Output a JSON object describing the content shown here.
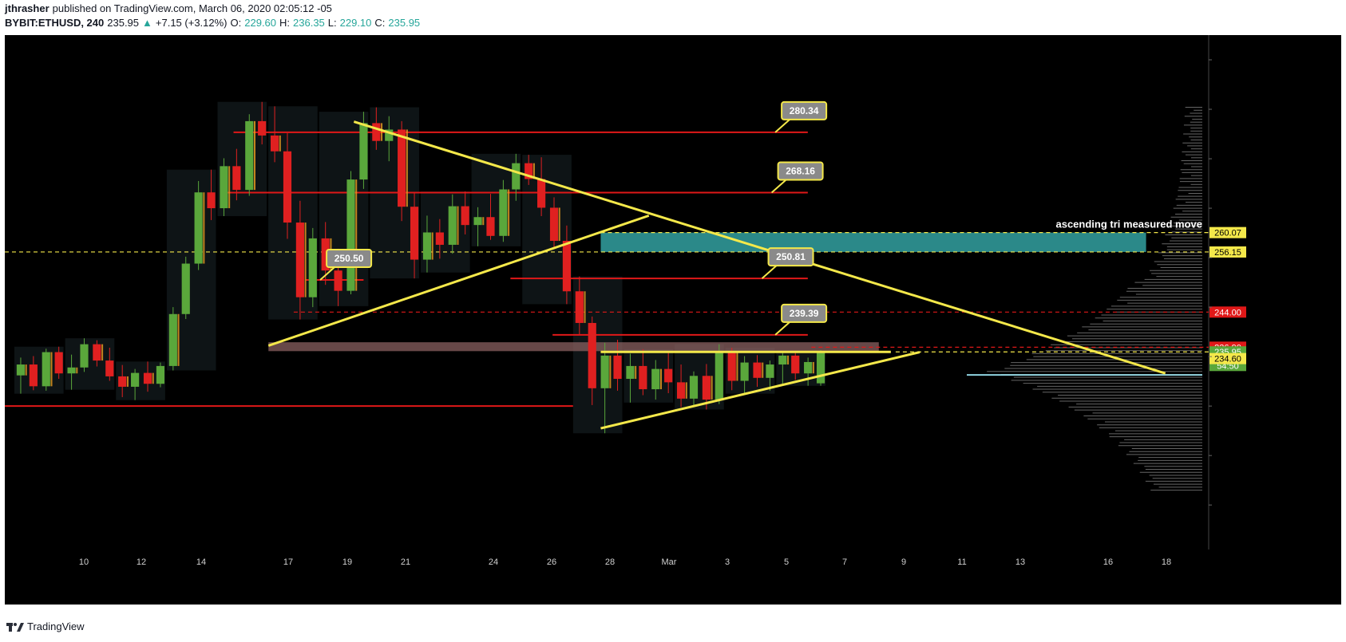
{
  "header": {
    "author": "jthrasher",
    "published": "published on TradingView.com, March 06, 2020 02:05:12 -05",
    "symbol": "BYBIT:ETHUSD, 240",
    "last": "235.95",
    "change": "+7.15 (+3.12%)",
    "o_label": "O:",
    "o": "229.60",
    "h_label": "H:",
    "h": "236.35",
    "l_label": "L:",
    "l": "229.10",
    "c_label": "C:",
    "c": "235.95"
  },
  "footer": {
    "brand": "TradingView"
  },
  "colors": {
    "background": "#000000",
    "up": "#5aa73b",
    "down": "#e02020",
    "trendline": "#f4e84a",
    "level_line": "#e01818",
    "measured_zone": "#3ab7b7",
    "supply_zone": "#8a6060",
    "profile": "#b9b9b9"
  },
  "chart_data": {
    "type": "candlestick",
    "symbol": "BYBIT:ETHUSD",
    "interval": "240",
    "x_ticks": [
      "10",
      "12",
      "14",
      "17",
      "19",
      "21",
      "24",
      "26",
      "28",
      "Mar",
      "3",
      "5",
      "7",
      "9",
      "11",
      "13",
      "16",
      "18"
    ],
    "axis_badges": [
      {
        "value": 260.07,
        "label": "260.07",
        "style": "yellow"
      },
      {
        "value": 256.15,
        "label": "256.15",
        "style": "yellow"
      },
      {
        "value": 244.0,
        "label": "244.00",
        "style": "red"
      },
      {
        "value": 236.9,
        "label": "236.90",
        "style": "red"
      },
      {
        "value": 235.95,
        "label": "235.95",
        "style": "green"
      },
      {
        "value": 233.2,
        "label": "54:50",
        "style": "green"
      },
      {
        "value": 234.6,
        "label": "234.60",
        "style": "yellow"
      }
    ],
    "callouts": [
      {
        "label": "280.34",
        "value": 280.34
      },
      {
        "label": "268.16",
        "value": 268.16
      },
      {
        "label": "250.50",
        "value": 250.5
      },
      {
        "label": "250.81",
        "value": 250.81
      },
      {
        "label": "239.39",
        "value": 239.39
      }
    ],
    "annotation_text": "ascending tri measured move",
    "candles": [
      [
        231.2,
        234.8,
        227.5,
        233.4
      ],
      [
        233.4,
        235.1,
        228.2,
        229.0
      ],
      [
        229.0,
        236.6,
        228.1,
        235.9
      ],
      [
        235.9,
        237.0,
        230.5,
        231.6
      ],
      [
        231.6,
        235.4,
        228.3,
        232.8
      ],
      [
        232.8,
        238.7,
        231.9,
        237.5
      ],
      [
        237.5,
        238.3,
        233.0,
        234.2
      ],
      [
        234.2,
        236.8,
        230.1,
        231.0
      ],
      [
        231.0,
        233.3,
        226.8,
        228.9
      ],
      [
        228.9,
        232.5,
        226.2,
        231.7
      ],
      [
        231.7,
        234.0,
        227.9,
        229.5
      ],
      [
        229.5,
        233.8,
        228.8,
        233.1
      ],
      [
        233.1,
        245.0,
        232.2,
        243.6
      ],
      [
        243.6,
        255.2,
        242.6,
        253.8
      ],
      [
        253.8,
        270.5,
        252.5,
        268.2
      ],
      [
        268.2,
        272.8,
        262.6,
        265.0
      ],
      [
        265.0,
        275.1,
        263.4,
        273.5
      ],
      [
        273.5,
        277.0,
        266.6,
        268.7
      ],
      [
        268.7,
        284.0,
        267.5,
        282.6
      ],
      [
        282.6,
        286.5,
        277.9,
        279.7
      ],
      [
        279.7,
        285.6,
        274.3,
        276.5
      ],
      [
        276.5,
        280.2,
        258.8,
        262.1
      ],
      [
        262.1,
        266.5,
        242.5,
        247.0
      ],
      [
        247.0,
        261.0,
        245.0,
        258.9
      ],
      [
        258.9,
        262.2,
        249.5,
        252.4
      ],
      [
        252.4,
        256.8,
        245.2,
        248.3
      ],
      [
        248.3,
        272.5,
        247.6,
        270.8
      ],
      [
        270.8,
        284.5,
        268.9,
        282.2
      ],
      [
        282.2,
        285.4,
        276.8,
        278.6
      ],
      [
        278.6,
        283.6,
        274.5,
        280.9
      ],
      [
        280.9,
        282.6,
        262.4,
        265.3
      ],
      [
        265.3,
        268.2,
        250.8,
        254.6
      ],
      [
        254.6,
        263.5,
        252.0,
        260.1
      ],
      [
        260.1,
        262.8,
        254.8,
        257.6
      ],
      [
        257.6,
        267.8,
        255.8,
        265.4
      ],
      [
        265.4,
        268.4,
        259.7,
        261.6
      ],
      [
        261.6,
        265.2,
        257.3,
        263.2
      ],
      [
        263.2,
        267.9,
        258.6,
        259.4
      ],
      [
        259.4,
        270.7,
        258.2,
        268.8
      ],
      [
        268.8,
        276.0,
        266.5,
        274.1
      ],
      [
        274.1,
        275.8,
        269.7,
        270.9
      ],
      [
        270.9,
        275.3,
        263.4,
        265.1
      ],
      [
        265.1,
        267.2,
        256.8,
        258.4
      ],
      [
        258.4,
        261.5,
        245.6,
        248.2
      ],
      [
        248.2,
        251.2,
        239.5,
        241.8
      ],
      [
        241.8,
        243.1,
        225.2,
        228.6
      ],
      [
        228.6,
        237.8,
        219.5,
        235.2
      ],
      [
        235.2,
        238.4,
        228.1,
        230.5
      ],
      [
        230.5,
        235.6,
        225.7,
        233.1
      ],
      [
        233.1,
        236.5,
        227.2,
        228.4
      ],
      [
        228.4,
        234.3,
        226.3,
        232.5
      ],
      [
        232.5,
        235.8,
        227.6,
        229.8
      ],
      [
        229.8,
        233.4,
        224.8,
        226.5
      ],
      [
        226.5,
        232.0,
        225.2,
        231.1
      ],
      [
        231.1,
        233.5,
        224.3,
        226.3
      ],
      [
        226.3,
        237.5,
        225.4,
        235.8
      ],
      [
        235.8,
        236.8,
        228.2,
        230.1
      ],
      [
        230.1,
        235.1,
        227.5,
        233.8
      ],
      [
        233.8,
        235.3,
        228.9,
        230.7
      ],
      [
        230.7,
        234.2,
        228.1,
        233.4
      ],
      [
        233.4,
        236.0,
        229.5,
        235.2
      ],
      [
        235.2,
        236.0,
        230.3,
        231.6
      ],
      [
        231.6,
        234.8,
        229.1,
        233.9
      ],
      [
        229.6,
        236.3,
        229.1,
        235.9
      ]
    ],
    "trendlines": [
      {
        "name": "descending-upper",
        "t": [
          0.29,
          0.964
        ],
        "v": [
          282.5,
          231.6
        ]
      },
      {
        "name": "ascending-lower-big",
        "t": [
          0.219,
          0.535
        ],
        "v": [
          237.2,
          263.5
        ]
      },
      {
        "name": "ascending-lower-small",
        "t": [
          0.495,
          0.76
        ],
        "v": [
          220.5,
          235.9
        ]
      },
      {
        "name": "triangle-top",
        "t": [
          0.495,
          0.736
        ],
        "v": [
          235.95,
          235.95
        ]
      }
    ],
    "h_levels": [
      {
        "value": 280.34,
        "t": [
          0.19,
          0.667
        ],
        "style": "solid",
        "color": "red"
      },
      {
        "value": 268.16,
        "t": [
          0.18,
          0.667
        ],
        "style": "solid",
        "color": "red"
      },
      {
        "value": 250.5,
        "t": [
          0.25,
          0.298
        ],
        "style": "solid",
        "color": "red"
      },
      {
        "value": 250.81,
        "t": [
          0.42,
          0.667
        ],
        "style": "solid",
        "color": "red"
      },
      {
        "value": 239.39,
        "t": [
          0.455,
          0.667
        ],
        "style": "solid",
        "color": "red"
      },
      {
        "value": 244.0,
        "t": [
          0.24,
          1.0
        ],
        "style": "dashed",
        "color": "red"
      },
      {
        "value": 236.9,
        "t": [
          0.67,
          1.0
        ],
        "style": "dashed",
        "color": "red"
      },
      {
        "value": 256.15,
        "t": [
          0.0,
          1.0
        ],
        "style": "dashed",
        "color": "yellow"
      },
      {
        "value": 260.07,
        "t": [
          0.495,
          1.0
        ],
        "style": "dashed",
        "color": "yellow"
      },
      {
        "value": 235.95,
        "t": [
          0.74,
          1.0
        ],
        "style": "dashed",
        "color": "yellow"
      },
      {
        "value": 225.0,
        "t": [
          0.0,
          0.472
        ],
        "style": "solid",
        "color": "red"
      }
    ],
    "zones": [
      {
        "name": "measured-move",
        "t": [
          0.495,
          0.948
        ],
        "v": [
          256.15,
          260.07
        ]
      },
      {
        "name": "supply",
        "t": [
          0.219,
          0.726
        ],
        "v": [
          236.1,
          237.9
        ]
      }
    ],
    "y_range": [
      196.0,
      300.0
    ]
  }
}
